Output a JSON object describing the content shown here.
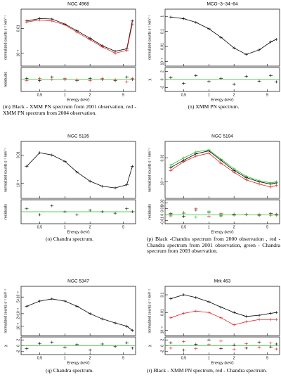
{
  "chart_data": [
    {
      "type": "scatter",
      "title": "NGC 4968",
      "ylabel": "normalized counts s⁻¹ keV⁻¹",
      "xlabel": "Energy (keV)",
      "caption": "(m) Black - XMM PN spectrum from 2001 observation, red - XMM PN spectrum from 2004 observation.",
      "log_scale": true,
      "xlim": [
        0.3,
        7
      ],
      "xticks": [
        0.5,
        1,
        2,
        5
      ],
      "ylim": [
        0.0003,
        0.06
      ],
      "yticks": [
        0.01,
        {
          "value": 0.001,
          "label": "10⁻³"
        }
      ],
      "x": [
        0.35,
        0.5,
        0.7,
        1,
        1.4,
        2,
        2.8,
        4,
        5.5,
        6.4
      ],
      "series": [
        {
          "color": "#000000",
          "values": [
            0.02,
            0.025,
            0.024,
            0.015,
            0.008,
            0.004,
            0.002,
            0.0012,
            0.0015,
            0.02
          ]
        },
        {
          "color": "#e02020",
          "values": [
            0.018,
            0.022,
            0.02,
            0.014,
            0.007,
            0.0035,
            0.0018,
            0.001,
            0.0013,
            0.015
          ]
        }
      ],
      "residuals": {
        "label": "residuals",
        "ylim": [
          -0.01,
          0.01
        ],
        "yticks": [],
        "series": [
          {
            "color": "#000000",
            "values": [
              0.001,
              -0.001,
              0.002,
              0,
              -0.001,
              0.001,
              0,
              -0.001,
              0.002,
              0
            ]
          },
          {
            "color": "#e02020",
            "values": [
              -0.001,
              0.001,
              0,
              0.001,
              0,
              -0.001,
              0.001,
              0,
              -0.002,
              0.001
            ]
          }
        ]
      }
    },
    {
      "type": "scatter",
      "title": "MCG–3–34–64",
      "ylabel": "normalized counts s⁻¹ keV⁻¹",
      "xlabel": "Energy (keV)",
      "caption": "(n) XMM PN spectrum.",
      "log_scale": true,
      "xlim": [
        0.3,
        7
      ],
      "xticks": [
        0.5,
        1,
        2,
        5
      ],
      "ylim": [
        0.0005,
        3
      ],
      "yticks": [
        1,
        0.1,
        0.01,
        {
          "value": 0.001,
          "label": "10⁻³"
        }
      ],
      "x": [
        0.35,
        0.5,
        0.7,
        1,
        1.4,
        2,
        2.8,
        4,
        5.5,
        6.4
      ],
      "series": [
        {
          "color": "#000000",
          "values": [
            0.9,
            0.7,
            0.4,
            0.15,
            0.04,
            0.008,
            0.003,
            0.006,
            0.02,
            0.03
          ]
        }
      ],
      "residuals": {
        "label": "χ",
        "ylim": [
          -3,
          3
        ],
        "yticks": [
          2,
          0,
          -2
        ],
        "series": [
          {
            "color": "#000000",
            "values": [
              0.5,
              -1,
              1,
              -0.5,
              0.3,
              -1.2,
              0.8,
              -0.4,
              1,
              -0.6
            ]
          }
        ]
      }
    },
    {
      "type": "scatter",
      "title": "NGC 5135",
      "ylabel": "normalized counts s⁻¹ keV⁻¹",
      "xlabel": "Energy (keV)",
      "caption": "(o) Chandra spectrum.",
      "log_scale": true,
      "xlim": [
        0.3,
        7
      ],
      "xticks": [
        0.5,
        1,
        2,
        5
      ],
      "ylim": [
        0.0003,
        0.03
      ],
      "yticks": [
        0.01,
        {
          "value": 0.001,
          "label": "10⁻³"
        }
      ],
      "x": [
        0.35,
        0.5,
        0.7,
        1,
        1.4,
        2,
        2.8,
        4,
        5.5,
        6.4
      ],
      "series": [
        {
          "color": "#000000",
          "values": [
            0.004,
            0.012,
            0.01,
            0.006,
            0.0025,
            0.0012,
            0.0008,
            0.0007,
            0.0009,
            0.004
          ]
        }
      ],
      "residuals": {
        "label": "residuals",
        "ylim": [
          -0.004,
          0.004
        ],
        "yticks": [],
        "series": [
          {
            "color": "#000000",
            "values": [
              0.001,
              -0.001,
              0.002,
              0,
              -0.001,
              0.0005,
              0,
              -0.0005,
              0.001,
              0
            ]
          }
        ]
      }
    },
    {
      "type": "scatter",
      "title": "NGC 5194",
      "ylabel": "normalized counts s⁻¹ keV⁻¹",
      "xlabel": "Energy (keV)",
      "caption": "(p) Black -Chandra spectrum from 2000 observation , red - Chandra spectrum from 2001 observation, green - Chandra spectrum from 2003 observation.",
      "log_scale": true,
      "xlim": [
        0.3,
        7
      ],
      "xticks": [
        0.5,
        1,
        2,
        5
      ],
      "ylim": [
        0.0002,
        0.05
      ],
      "yticks": [
        0.01,
        {
          "value": 0.001,
          "label": "10⁻³"
        }
      ],
      "x": [
        0.35,
        0.5,
        0.7,
        1,
        1.4,
        2,
        2.8,
        4,
        5.5,
        6.4
      ],
      "series": [
        {
          "color": "#000000",
          "values": [
            0.004,
            0.008,
            0.015,
            0.02,
            0.008,
            0.003,
            0.0015,
            0.001,
            0.0008,
            0.0009
          ]
        },
        {
          "color": "#e02020",
          "values": [
            0.003,
            0.007,
            0.012,
            0.016,
            0.006,
            0.0025,
            0.0012,
            0.0008,
            0.0006,
            0.0007
          ]
        },
        {
          "color": "#20c020",
          "values": [
            0.005,
            0.01,
            0.018,
            0.022,
            0.009,
            0.0035,
            0.0017,
            0.0011,
            0.0009,
            0.001
          ]
        }
      ],
      "residuals": {
        "label": "residuals",
        "ylim": [
          -0.015,
          0.025
        ],
        "yticks": [
          0.02,
          0.01,
          0,
          -0.01
        ],
        "series": [
          {
            "color": "#000000",
            "values": [
              0.002,
              -0.003,
              0.008,
              0.004,
              -0.002,
              0.001,
              0,
              -0.001,
              0.002,
              0
            ]
          },
          {
            "color": "#e02020",
            "values": [
              -0.002,
              0.004,
              0.01,
              -0.003,
              0.002,
              0,
              0.001,
              0,
              -0.001,
              0.001
            ]
          },
          {
            "color": "#20c020",
            "values": [
              0.001,
              0.002,
              -0.004,
              0.006,
              0.001,
              -0.001,
              0,
              0.001,
              0,
              -0.001
            ]
          }
        ]
      }
    },
    {
      "type": "scatter",
      "title": "NGC 5347",
      "ylabel": "normalized counts s⁻¹ keV⁻¹",
      "xlabel": "Energy (keV)",
      "caption": "(q) Chandra spectrum.",
      "log_scale": true,
      "xlim": [
        0.3,
        7
      ],
      "xticks": [
        0.5,
        1,
        2,
        5
      ],
      "ylim": [
        0.0006,
        0.009
      ],
      "yticks": [
        {
          "value": 0.005,
          "label": "5×10⁻³"
        },
        {
          "value": 0.002,
          "label": "2×10⁻³"
        },
        {
          "value": 0.001,
          "label": "10⁻³"
        }
      ],
      "x": [
        0.35,
        0.5,
        0.7,
        1,
        1.4,
        2,
        2.8,
        4,
        5.5,
        6.4
      ],
      "series": [
        {
          "color": "#000000",
          "values": [
            0.003,
            0.004,
            0.0045,
            0.004,
            0.003,
            0.002,
            0.0015,
            0.0012,
            0.001,
            0.0008
          ]
        }
      ],
      "residuals": {
        "label": "χ",
        "ylim": [
          -3,
          3
        ],
        "yticks": [
          2,
          0,
          -2
        ],
        "series": [
          {
            "color": "#000000",
            "values": [
              -1,
              0.8,
              1.2,
              -0.5,
              0.4,
              -1.5,
              0.6,
              -0.3,
              1,
              -0.8
            ]
          }
        ]
      }
    },
    {
      "type": "scatter",
      "title": "Mrk 463",
      "ylabel": "normalized counts s⁻¹ keV⁻¹",
      "xlabel": "Energy (keV)",
      "caption": "(r) Black - XMM PN spectrum, red - Chandra spectrum.",
      "log_scale": true,
      "xlim": [
        0.3,
        7
      ],
      "xticks": [
        0.5,
        1,
        2,
        5
      ],
      "ylim": [
        0.0005,
        0.3
      ],
      "yticks": [
        0.1,
        0.01,
        {
          "value": 0.001,
          "label": "10⁻³"
        }
      ],
      "x": [
        0.35,
        0.5,
        0.7,
        1,
        1.4,
        2,
        2.8,
        4,
        5.5,
        6.4
      ],
      "series": [
        {
          "color": "#000000",
          "values": [
            0.06,
            0.1,
            0.07,
            0.04,
            0.02,
            0.01,
            0.006,
            0.007,
            0.009,
            0.01
          ]
        },
        {
          "color": "#e02020",
          "values": [
            0.005,
            0.009,
            0.012,
            0.01,
            0.005,
            0.002,
            0.003,
            0.004,
            0.004,
            0.004
          ]
        }
      ],
      "residuals": {
        "label": "χ",
        "ylim": [
          -3,
          3
        ],
        "yticks": [
          2,
          0,
          -2
        ],
        "series": [
          {
            "color": "#000000",
            "values": [
              1,
              -1.5,
              0.5,
              2,
              -1,
              0.3,
              -0.8,
              1.2,
              -0.4,
              0.6
            ]
          },
          {
            "color": "#e02020",
            "values": [
              -0.8,
              1.4,
              -1,
              0.4,
              1.6,
              -1.2,
              0.7,
              -0.5,
              0.9,
              -1.1
            ]
          }
        ]
      }
    }
  ]
}
